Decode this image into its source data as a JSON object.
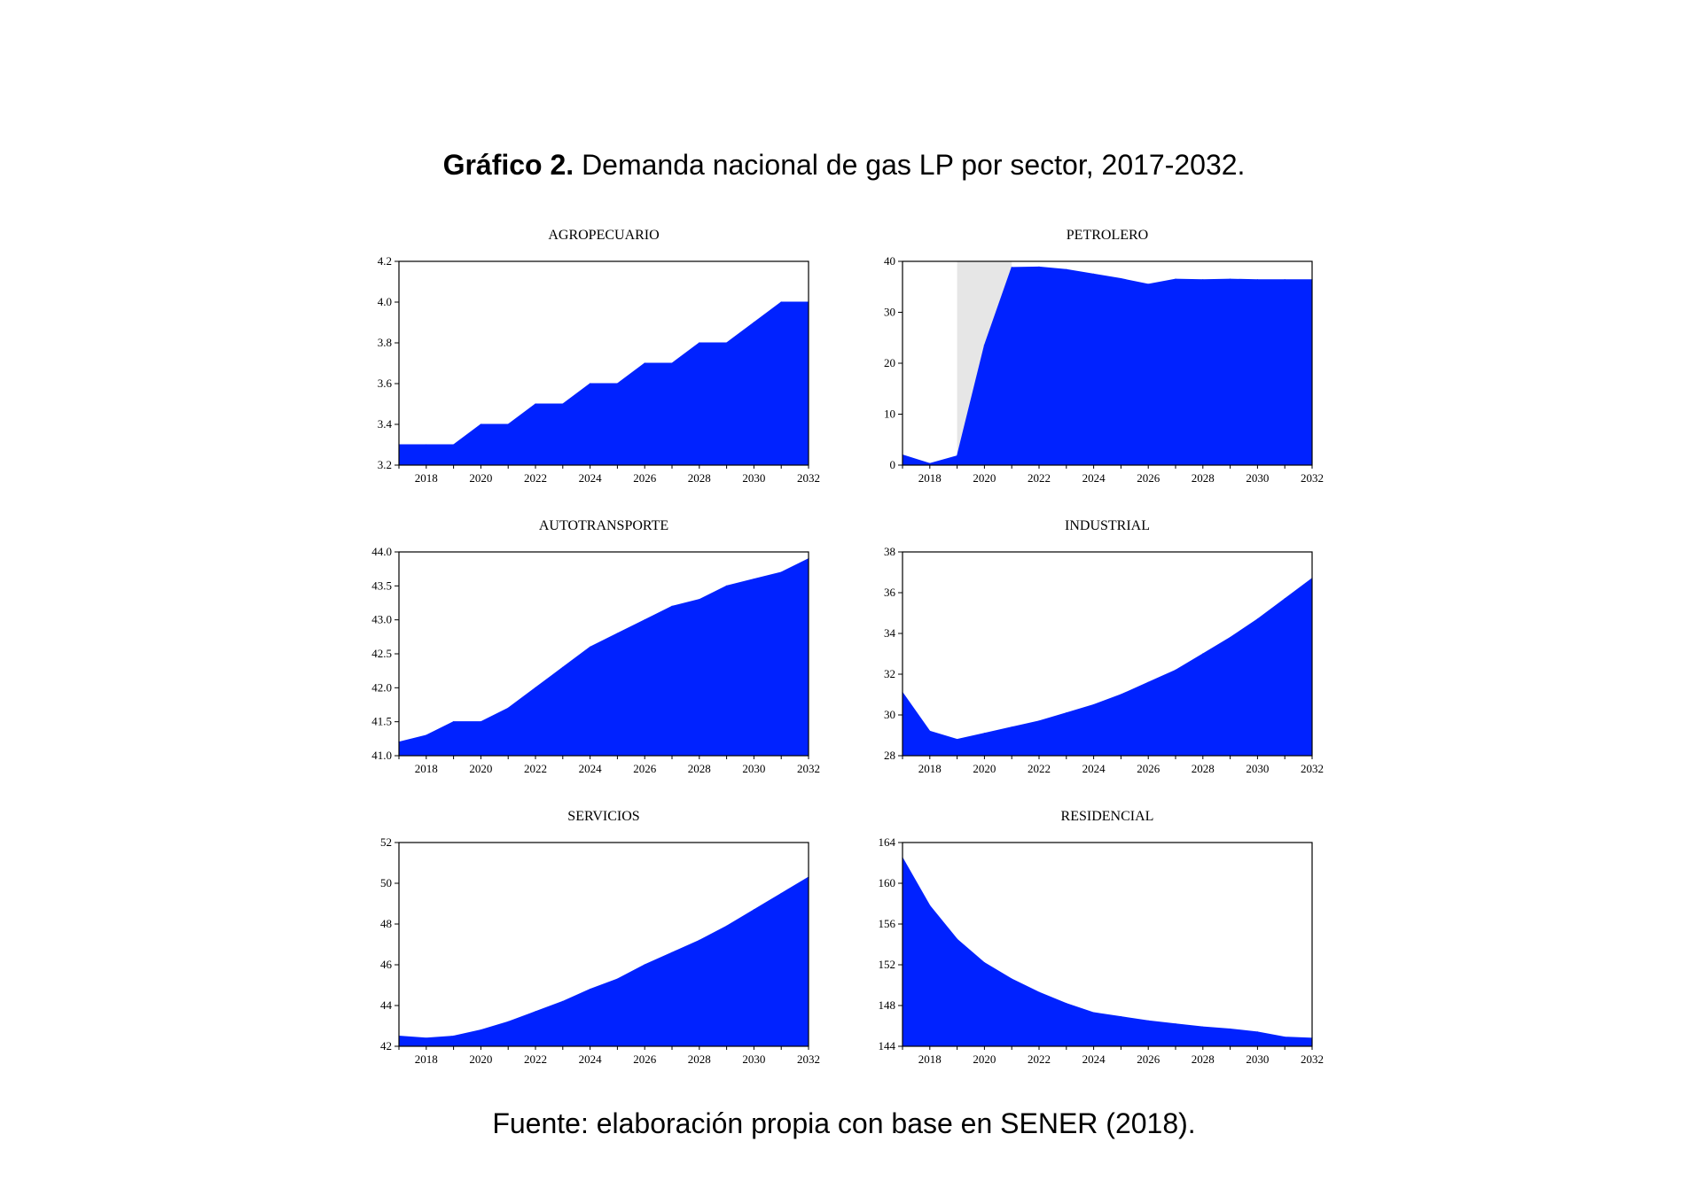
{
  "title": {
    "bold": "Gráfico 2.",
    "rest": " Demanda nacional de gas LP por sector, 2017-2032."
  },
  "source": "Fuente: elaboración propia con base en SENER (2018).",
  "colors": {
    "fill": "#0022ff",
    "shade": "#e6e6e6",
    "axis": "#000000"
  },
  "chart_data": [
    {
      "type": "area",
      "title": "AGROPECUARIO",
      "x": [
        2017,
        2018,
        2019,
        2020,
        2021,
        2022,
        2023,
        2024,
        2025,
        2026,
        2027,
        2028,
        2029,
        2030,
        2031,
        2032
      ],
      "values": [
        3.3,
        3.3,
        3.3,
        3.4,
        3.4,
        3.5,
        3.5,
        3.6,
        3.6,
        3.7,
        3.7,
        3.8,
        3.8,
        3.9,
        4.0,
        4.0
      ],
      "xticks": [
        2018,
        2020,
        2022,
        2024,
        2026,
        2028,
        2030,
        2032
      ],
      "yticks": [
        "3.2",
        "3.4",
        "3.6",
        "3.8",
        "4.0",
        "4.2"
      ],
      "ylim": [
        3.2,
        4.2
      ]
    },
    {
      "type": "area",
      "title": "PETROLERO",
      "x": [
        2017,
        2018,
        2019,
        2020,
        2021,
        2022,
        2023,
        2024,
        2025,
        2026,
        2027,
        2028,
        2029,
        2030,
        2031,
        2032
      ],
      "values": [
        2.0,
        0.3,
        1.8,
        23.5,
        38.8,
        38.9,
        38.4,
        37.5,
        36.6,
        35.5,
        36.5,
        36.4,
        36.5,
        36.4,
        36.4,
        36.4
      ],
      "shaded_band": [
        2019,
        2021
      ],
      "xticks": [
        2018,
        2020,
        2022,
        2024,
        2026,
        2028,
        2030,
        2032
      ],
      "yticks": [
        "0",
        "10",
        "20",
        "30",
        "40"
      ],
      "ylim": [
        0,
        40
      ]
    },
    {
      "type": "area",
      "title": "AUTOTRANSPORTE",
      "x": [
        2017,
        2018,
        2019,
        2020,
        2021,
        2022,
        2023,
        2024,
        2025,
        2026,
        2027,
        2028,
        2029,
        2030,
        2031,
        2032
      ],
      "values": [
        41.2,
        41.3,
        41.5,
        41.5,
        41.7,
        42.0,
        42.3,
        42.6,
        42.8,
        43.0,
        43.2,
        43.3,
        43.5,
        43.6,
        43.7,
        43.9
      ],
      "xticks": [
        2018,
        2020,
        2022,
        2024,
        2026,
        2028,
        2030,
        2032
      ],
      "yticks": [
        "41.0",
        "41.5",
        "42.0",
        "42.5",
        "43.0",
        "43.5",
        "44.0"
      ],
      "ylim": [
        41.0,
        44.0
      ]
    },
    {
      "type": "area",
      "title": "INDUSTRIAL",
      "x": [
        2017,
        2018,
        2019,
        2020,
        2021,
        2022,
        2023,
        2024,
        2025,
        2026,
        2027,
        2028,
        2029,
        2030,
        2031,
        2032
      ],
      "values": [
        31.1,
        29.2,
        28.8,
        29.1,
        29.4,
        29.7,
        30.1,
        30.5,
        31.0,
        31.6,
        32.2,
        33.0,
        33.8,
        34.7,
        35.7,
        36.7
      ],
      "xticks": [
        2018,
        2020,
        2022,
        2024,
        2026,
        2028,
        2030,
        2032
      ],
      "yticks": [
        "28",
        "30",
        "32",
        "34",
        "36",
        "38"
      ],
      "ylim": [
        28,
        38
      ]
    },
    {
      "type": "area",
      "title": "SERVICIOS",
      "x": [
        2017,
        2018,
        2019,
        2020,
        2021,
        2022,
        2023,
        2024,
        2025,
        2026,
        2027,
        2028,
        2029,
        2030,
        2031,
        2032
      ],
      "values": [
        42.5,
        42.4,
        42.5,
        42.8,
        43.2,
        43.7,
        44.2,
        44.8,
        45.3,
        46.0,
        46.6,
        47.2,
        47.9,
        48.7,
        49.5,
        50.3
      ],
      "xticks": [
        2018,
        2020,
        2022,
        2024,
        2026,
        2028,
        2030,
        2032
      ],
      "yticks": [
        "42",
        "44",
        "46",
        "48",
        "50",
        "52"
      ],
      "ylim": [
        42,
        52
      ]
    },
    {
      "type": "area",
      "title": "RESIDENCIAL",
      "x": [
        2017,
        2018,
        2019,
        2020,
        2021,
        2022,
        2023,
        2024,
        2025,
        2026,
        2027,
        2028,
        2029,
        2030,
        2031,
        2032
      ],
      "values": [
        162.5,
        157.8,
        154.5,
        152.2,
        150.6,
        149.3,
        148.2,
        147.3,
        146.9,
        146.5,
        146.2,
        145.9,
        145.7,
        145.4,
        144.9,
        144.8
      ],
      "xticks": [
        2018,
        2020,
        2022,
        2024,
        2026,
        2028,
        2030,
        2032
      ],
      "yticks": [
        "144",
        "148",
        "152",
        "156",
        "160",
        "164"
      ],
      "ylim": [
        144,
        164
      ]
    }
  ]
}
